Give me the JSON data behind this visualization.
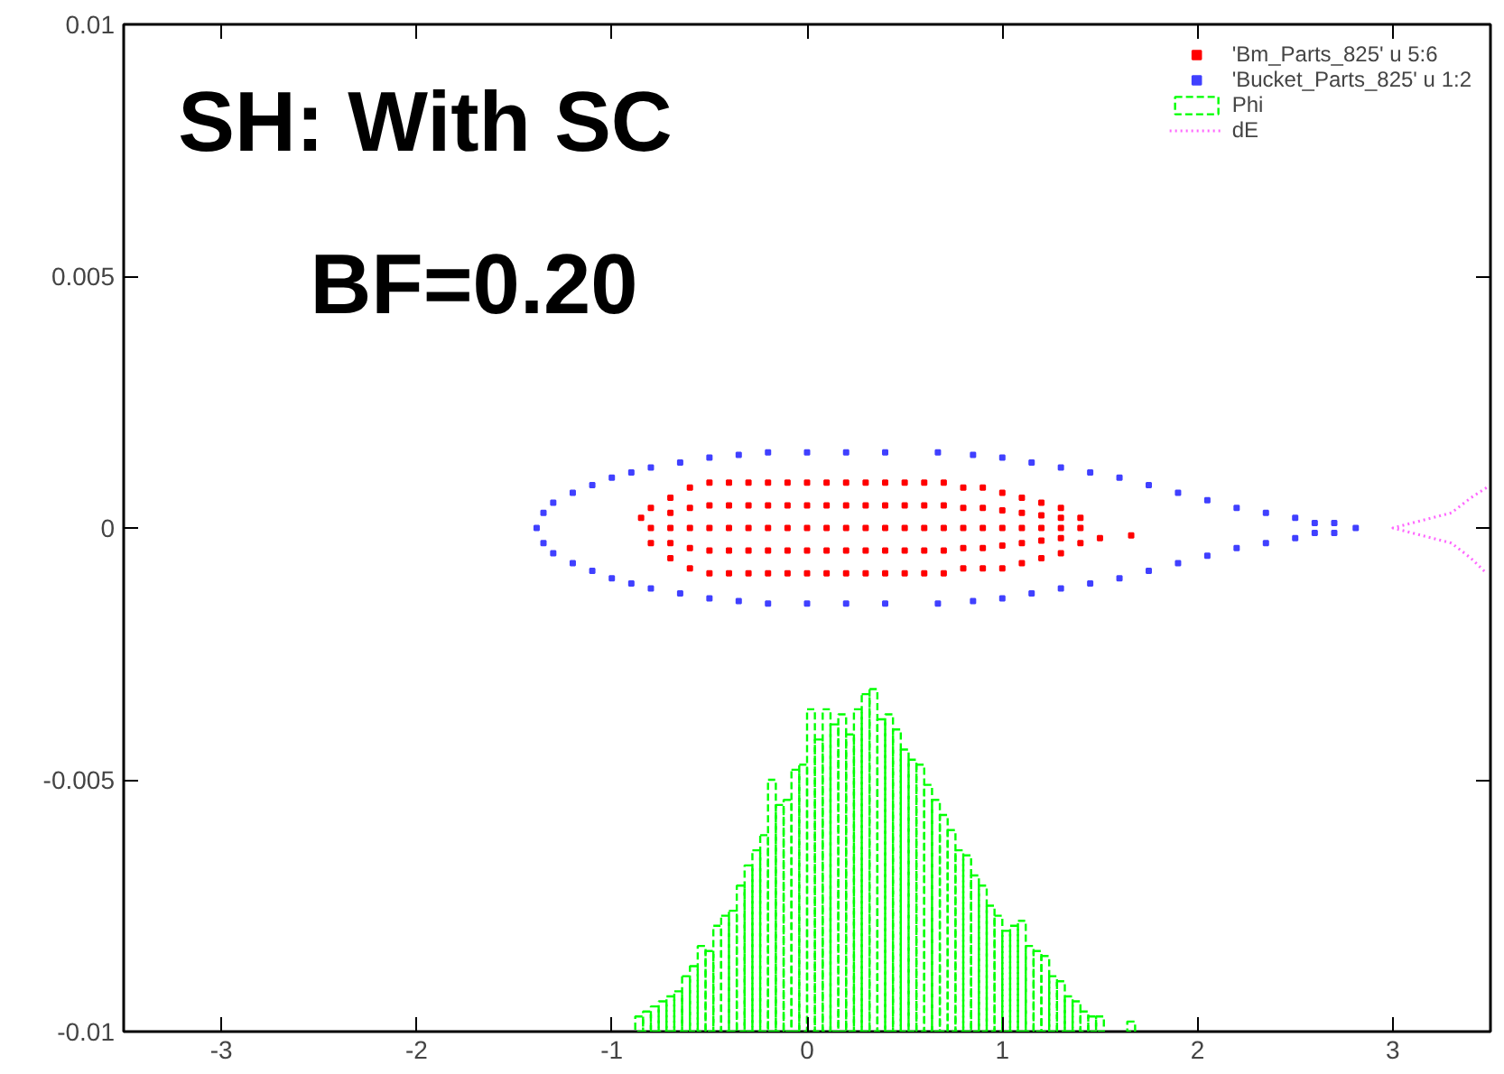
{
  "chart_data": {
    "type": "scatter",
    "annotations": [
      "SH: With SC",
      "BF=0.20"
    ],
    "xlim": [
      -3.5,
      3.5
    ],
    "xticks": [
      -3,
      -2,
      -1,
      0,
      1,
      2,
      3
    ],
    "ylim": [
      -0.01,
      0.01
    ],
    "yticks": [
      0.01,
      0.005,
      0,
      -0.005,
      -0.01
    ],
    "legend": "top right",
    "marker": "square",
    "series": [
      {
        "name": "'Bm_Parts_825' u 5:6",
        "color": "#ff0000",
        "x": [
          -0.85,
          -0.8,
          -0.8,
          -0.8,
          -0.7,
          -0.7,
          -0.7,
          -0.7,
          -0.7,
          -0.6,
          -0.6,
          -0.6,
          -0.6,
          -0.6,
          -0.5,
          -0.5,
          -0.5,
          -0.5,
          -0.5,
          -0.4,
          -0.4,
          -0.4,
          -0.4,
          -0.4,
          -0.3,
          -0.3,
          -0.3,
          -0.3,
          -0.3,
          -0.2,
          -0.2,
          -0.2,
          -0.2,
          -0.2,
          -0.1,
          -0.1,
          -0.1,
          -0.1,
          -0.1,
          0,
          0,
          0,
          0,
          0,
          0.1,
          0.1,
          0.1,
          0.1,
          0.1,
          0.2,
          0.2,
          0.2,
          0.2,
          0.2,
          0.3,
          0.3,
          0.3,
          0.3,
          0.3,
          0.4,
          0.4,
          0.4,
          0.4,
          0.4,
          0.5,
          0.5,
          0.5,
          0.5,
          0.5,
          0.6,
          0.6,
          0.6,
          0.6,
          0.6,
          0.7,
          0.7,
          0.7,
          0.7,
          0.7,
          0.8,
          0.8,
          0.8,
          0.8,
          0.8,
          0.9,
          0.9,
          0.9,
          0.9,
          0.9,
          1.0,
          1.0,
          1.0,
          1.0,
          1.0,
          1.1,
          1.1,
          1.1,
          1.1,
          1.1,
          1.2,
          1.2,
          1.2,
          1.2,
          1.2,
          1.3,
          1.3,
          1.3,
          1.3,
          1.3,
          1.4,
          1.4,
          1.4,
          1.5,
          1.66
        ],
        "values": [
          0.0002,
          0.0004,
          0,
          -0.0003,
          0.0006,
          0.0003,
          0,
          -0.0003,
          -0.0006,
          0.0008,
          0.0004,
          0,
          -0.0004,
          -0.0008,
          0.0009,
          0.00045,
          0,
          -0.00045,
          -0.0009,
          0.0009,
          0.00045,
          0,
          -0.00045,
          -0.0009,
          0.0009,
          0.00045,
          0,
          -0.00045,
          -0.0009,
          0.0009,
          0.00045,
          0,
          -0.00045,
          -0.0009,
          0.0009,
          0.00045,
          0,
          -0.00045,
          -0.0009,
          0.0009,
          0.00045,
          0,
          -0.00045,
          -0.0009,
          0.0009,
          0.00045,
          0,
          -0.00045,
          -0.0009,
          0.0009,
          0.00045,
          0,
          -0.00045,
          -0.0009,
          0.0009,
          0.00045,
          0,
          -0.00045,
          -0.0009,
          0.0009,
          0.00045,
          0,
          -0.00045,
          -0.0009,
          0.0009,
          0.00045,
          0,
          -0.00045,
          -0.0009,
          0.0009,
          0.00045,
          0,
          -0.00045,
          -0.0009,
          0.0009,
          0.00045,
          0,
          -0.00045,
          -0.0009,
          0.0008,
          0.0004,
          0,
          -0.0004,
          -0.0008,
          0.0008,
          0.0004,
          0,
          -0.0004,
          -0.0008,
          0.0007,
          0.00035,
          0,
          -0.00035,
          -0.0008,
          0.0006,
          0.0003,
          0,
          -0.0003,
          -0.0007,
          0.0005,
          0.00025,
          0,
          -0.00025,
          -0.0006,
          0.0004,
          0.0002,
          0,
          -0.0002,
          -0.0005,
          0.0002,
          0,
          -0.0003,
          -0.0002,
          -0.00015
        ]
      },
      {
        "name": "'Bucket_Parts_825' u 1:2",
        "color": "#4040ff",
        "x": [
          -1.385,
          -1.35,
          -1.3,
          -1.2,
          -1.1,
          -1.0,
          -0.9,
          -0.8,
          -0.65,
          -0.5,
          -0.35,
          -0.2,
          0,
          0.2,
          0.4,
          0.67,
          0.85,
          1.0,
          1.15,
          1.3,
          1.45,
          1.6,
          1.75,
          1.9,
          2.05,
          2.2,
          2.35,
          2.5,
          2.6,
          2.7,
          2.81,
          2.7,
          2.6,
          2.5,
          2.35,
          2.2,
          2.05,
          1.9,
          1.75,
          1.6,
          1.45,
          1.3,
          1.15,
          1.0,
          0.85,
          0.67,
          0.4,
          0.2,
          0,
          -0.2,
          -0.35,
          -0.5,
          -0.65,
          -0.8,
          -0.9,
          -1.0,
          -1.1,
          -1.2,
          -1.3,
          -1.35
        ],
        "values": [
          0,
          0.0003,
          0.0005,
          0.0007,
          0.00085,
          0.001,
          0.0011,
          0.0012,
          0.0013,
          0.0014,
          0.00145,
          0.0015,
          0.0015,
          0.0015,
          0.0015,
          0.0015,
          0.00145,
          0.0014,
          0.0013,
          0.0012,
          0.0011,
          0.001,
          0.00085,
          0.0007,
          0.00055,
          0.0004,
          0.0003,
          0.0002,
          0.0001,
          0.0001,
          0,
          -0.0001,
          -0.0001,
          -0.0002,
          -0.0003,
          -0.0004,
          -0.00055,
          -0.0007,
          -0.00085,
          -0.001,
          -0.0011,
          -0.0012,
          -0.0013,
          -0.0014,
          -0.00145,
          -0.0015,
          -0.0015,
          -0.0015,
          -0.0015,
          -0.0015,
          -0.00145,
          -0.0014,
          -0.0013,
          -0.0012,
          -0.0011,
          -0.001,
          -0.00085,
          -0.0007,
          -0.0005,
          -0.0003
        ]
      },
      {
        "name": "Phi",
        "type": "bar",
        "color": "#00ff00",
        "line_style": "dashed",
        "x": [
          -0.86,
          -0.82,
          -0.78,
          -0.74,
          -0.7,
          -0.66,
          -0.62,
          -0.58,
          -0.54,
          -0.5,
          -0.46,
          -0.42,
          -0.38,
          -0.34,
          -0.3,
          -0.26,
          -0.22,
          -0.18,
          -0.14,
          -0.1,
          -0.06,
          -0.02,
          0.02,
          0.06,
          0.1,
          0.14,
          0.18,
          0.22,
          0.26,
          0.3,
          0.34,
          0.38,
          0.42,
          0.46,
          0.5,
          0.54,
          0.58,
          0.62,
          0.66,
          0.7,
          0.74,
          0.78,
          0.82,
          0.86,
          0.9,
          0.94,
          0.98,
          1.02,
          1.06,
          1.1,
          1.14,
          1.18,
          1.22,
          1.26,
          1.3,
          1.34,
          1.38,
          1.42,
          1.46,
          1.5,
          1.66
        ],
        "base": [
          -0.01,
          -0.01,
          -0.01,
          -0.01,
          -0.01,
          -0.01,
          -0.01,
          -0.01,
          -0.01,
          -0.01,
          -0.01,
          -0.01,
          -0.01,
          -0.01,
          -0.01,
          -0.01,
          -0.01,
          -0.01,
          -0.01,
          -0.01,
          -0.01,
          -0.01,
          -0.01,
          -0.01,
          -0.01,
          -0.01,
          -0.01,
          -0.01,
          -0.01,
          -0.01,
          -0.01,
          -0.01,
          -0.01,
          -0.01,
          -0.01,
          -0.01,
          -0.01,
          -0.01,
          -0.01,
          -0.01,
          -0.01,
          -0.01,
          -0.01,
          -0.01,
          -0.01,
          -0.01,
          -0.01,
          -0.01,
          -0.01,
          -0.01,
          -0.01,
          -0.01,
          -0.01,
          -0.01,
          -0.01,
          -0.01,
          -0.01,
          -0.01,
          -0.01,
          -0.01,
          -0.01
        ],
        "values": [
          0.0003,
          0.0004,
          0.0005,
          0.0006,
          0.0007,
          0.0008,
          0.0011,
          0.0013,
          0.0017,
          0.0016,
          0.0021,
          0.0023,
          0.0024,
          0.0029,
          0.0033,
          0.0036,
          0.0039,
          0.005,
          0.0045,
          0.0046,
          0.0052,
          0.0053,
          0.0064,
          0.0058,
          0.0064,
          0.0061,
          0.0063,
          0.0059,
          0.0064,
          0.0067,
          0.0068,
          0.0062,
          0.0063,
          0.006,
          0.0056,
          0.0054,
          0.0053,
          0.0049,
          0.0046,
          0.0043,
          0.004,
          0.0036,
          0.0035,
          0.0031,
          0.0029,
          0.0025,
          0.0023,
          0.002,
          0.0021,
          0.0022,
          0.0017,
          0.0016,
          0.0015,
          0.0011,
          0.001,
          0.0007,
          0.0006,
          0.0004,
          0.0003,
          0.0003,
          0.0002
        ]
      },
      {
        "name": "dE",
        "type": "line",
        "color": "#ff66ff",
        "line_style": "dotted",
        "marker": "none",
        "x": [
          3.48,
          3.4,
          3.3,
          3.2,
          3.1,
          3.0,
          3.1,
          3.2,
          3.3,
          3.4,
          3.48
        ],
        "values": [
          0.0008,
          0.0006,
          0.0003,
          0.0002,
          0.0001,
          0,
          -0.0001,
          -0.0002,
          -0.0003,
          -0.0006,
          -0.0009
        ]
      }
    ]
  }
}
